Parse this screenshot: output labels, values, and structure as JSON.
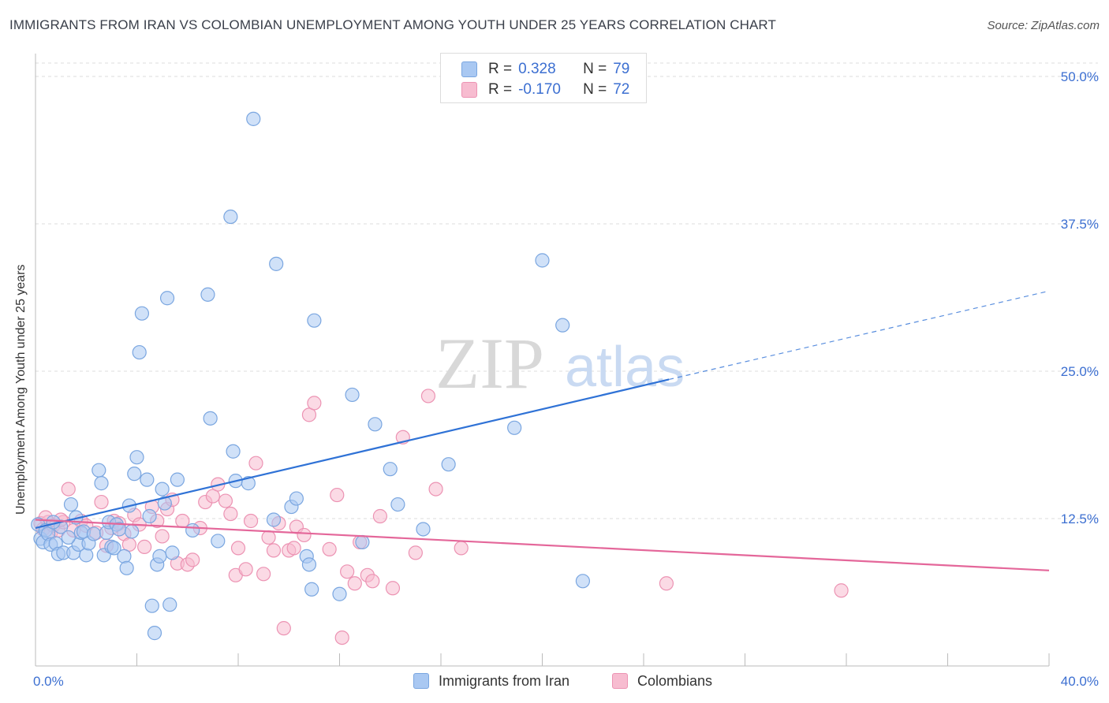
{
  "title": "IMMIGRANTS FROM IRAN VS COLOMBIAN UNEMPLOYMENT AMONG YOUTH UNDER 25 YEARS CORRELATION CHART",
  "source": "Source: ZipAtlas.com",
  "watermark": {
    "zip": "ZIP",
    "atlas": "atlas"
  },
  "legend": {
    "r_label": "R =",
    "n_label": "N =",
    "series1": {
      "r": "0.328",
      "n": "79"
    },
    "series2": {
      "r": "-0.170",
      "n": "72"
    }
  },
  "colors": {
    "iran_fill": "#a9c8f2",
    "iran_stroke": "#7aa6e0",
    "iran_line": "#2f72d6",
    "colombia_fill": "#f7bcd0",
    "colombia_stroke": "#ec93b3",
    "colombia_line": "#e4679a",
    "tick_text": "#3c6fd1",
    "grid": "#dddddd"
  },
  "chart_data": {
    "type": "scatter",
    "title": "IMMIGRANTS FROM IRAN VS COLOMBIAN UNEMPLOYMENT AMONG YOUTH UNDER 25 YEARS CORRELATION CHART",
    "xlabel": "",
    "ylabel": "Unemployment Among Youth under 25 years",
    "xlim": [
      0,
      40
    ],
    "ylim": [
      0,
      50
    ],
    "x_tick_labels": [
      "0.0%",
      "40.0%"
    ],
    "y_ticks": [
      12.5,
      25.0,
      37.5,
      50.0
    ],
    "y_tick_labels": [
      "12.5%",
      "25.0%",
      "37.5%",
      "50.0%"
    ],
    "series": [
      {
        "name": "Immigrants from Iran",
        "trend": {
          "x0": 0,
          "y0": 11.7,
          "x1": 25,
          "y1": 24.3,
          "dashed_to_x": 40,
          "dashed_to_y": 31.8
        },
        "points": [
          [
            0.1,
            12.0
          ],
          [
            0.2,
            10.8
          ],
          [
            0.3,
            10.5
          ],
          [
            0.4,
            11.5
          ],
          [
            0.5,
            11.2
          ],
          [
            0.6,
            10.3
          ],
          [
            0.8,
            10.4
          ],
          [
            0.9,
            9.5
          ],
          [
            1.0,
            11.8
          ],
          [
            1.1,
            9.6
          ],
          [
            1.4,
            13.7
          ],
          [
            1.5,
            9.6
          ],
          [
            1.6,
            12.6
          ],
          [
            1.7,
            10.3
          ],
          [
            1.8,
            11.3
          ],
          [
            1.9,
            11.4
          ],
          [
            2.0,
            9.4
          ],
          [
            2.1,
            10.4
          ],
          [
            2.3,
            11.2
          ],
          [
            2.5,
            16.6
          ],
          [
            2.6,
            15.5
          ],
          [
            2.7,
            9.4
          ],
          [
            2.8,
            11.3
          ],
          [
            2.9,
            12.2
          ],
          [
            3.0,
            10.1
          ],
          [
            3.1,
            10.0
          ],
          [
            3.2,
            12.0
          ],
          [
            3.3,
            11.6
          ],
          [
            3.5,
            9.3
          ],
          [
            3.6,
            8.3
          ],
          [
            3.7,
            13.6
          ],
          [
            3.8,
            11.4
          ],
          [
            3.9,
            16.3
          ],
          [
            4.0,
            17.7
          ],
          [
            4.1,
            26.6
          ],
          [
            4.2,
            29.9
          ],
          [
            4.4,
            15.8
          ],
          [
            4.5,
            12.7
          ],
          [
            4.6,
            5.1
          ],
          [
            4.7,
            2.8
          ],
          [
            4.8,
            8.6
          ],
          [
            4.9,
            9.3
          ],
          [
            5.0,
            15.0
          ],
          [
            5.1,
            13.8
          ],
          [
            5.2,
            31.2
          ],
          [
            5.3,
            5.2
          ],
          [
            5.4,
            9.6
          ],
          [
            5.6,
            15.8
          ],
          [
            6.2,
            11.5
          ],
          [
            6.8,
            31.5
          ],
          [
            6.9,
            21.0
          ],
          [
            7.2,
            10.6
          ],
          [
            7.7,
            38.1
          ],
          [
            7.8,
            18.2
          ],
          [
            7.9,
            15.7
          ],
          [
            8.4,
            15.5
          ],
          [
            8.6,
            46.4
          ],
          [
            9.4,
            12.4
          ],
          [
            9.5,
            34.1
          ],
          [
            10.1,
            13.5
          ],
          [
            10.3,
            14.2
          ],
          [
            10.7,
            9.3
          ],
          [
            10.8,
            8.6
          ],
          [
            10.9,
            6.5
          ],
          [
            11.0,
            29.3
          ],
          [
            12.0,
            6.1
          ],
          [
            12.5,
            23.0
          ],
          [
            12.9,
            10.5
          ],
          [
            13.4,
            20.5
          ],
          [
            14.0,
            16.7
          ],
          [
            14.3,
            13.7
          ],
          [
            15.3,
            11.6
          ],
          [
            16.3,
            17.1
          ],
          [
            18.9,
            20.2
          ],
          [
            20.0,
            34.4
          ],
          [
            20.8,
            28.9
          ],
          [
            21.6,
            7.2
          ],
          [
            0.7,
            12.2
          ],
          [
            1.3,
            10.9
          ]
        ]
      },
      {
        "name": "Colombians",
        "trend": {
          "x0": 0,
          "y0": 12.4,
          "x1": 40,
          "y1": 8.1
        },
        "points": [
          [
            0.2,
            12.1
          ],
          [
            0.3,
            11.6
          ],
          [
            0.5,
            12.2
          ],
          [
            0.6,
            11.3
          ],
          [
            0.7,
            11.9
          ],
          [
            0.9,
            11.5
          ],
          [
            1.1,
            12.2
          ],
          [
            1.3,
            15.0
          ],
          [
            1.5,
            11.5
          ],
          [
            1.8,
            12.3
          ],
          [
            2.0,
            11.9
          ],
          [
            2.4,
            11.3
          ],
          [
            2.6,
            13.9
          ],
          [
            2.8,
            10.2
          ],
          [
            3.0,
            11.7
          ],
          [
            3.1,
            12.3
          ],
          [
            3.3,
            12.1
          ],
          [
            3.5,
            11.2
          ],
          [
            3.7,
            10.3
          ],
          [
            3.9,
            12.8
          ],
          [
            4.1,
            12.0
          ],
          [
            4.3,
            10.1
          ],
          [
            4.6,
            13.5
          ],
          [
            4.8,
            12.3
          ],
          [
            5.0,
            11.0
          ],
          [
            5.2,
            13.3
          ],
          [
            5.4,
            14.1
          ],
          [
            5.6,
            8.7
          ],
          [
            5.8,
            12.3
          ],
          [
            6.0,
            8.6
          ],
          [
            6.2,
            9.0
          ],
          [
            6.5,
            11.7
          ],
          [
            6.7,
            13.9
          ],
          [
            7.0,
            14.4
          ],
          [
            7.2,
            15.4
          ],
          [
            7.5,
            14.0
          ],
          [
            7.7,
            12.9
          ],
          [
            7.9,
            7.7
          ],
          [
            8.0,
            10.0
          ],
          [
            8.3,
            8.2
          ],
          [
            8.5,
            12.3
          ],
          [
            8.7,
            17.2
          ],
          [
            9.0,
            7.8
          ],
          [
            9.2,
            10.9
          ],
          [
            9.4,
            9.8
          ],
          [
            9.6,
            12.1
          ],
          [
            9.8,
            3.2
          ],
          [
            10.0,
            9.8
          ],
          [
            10.2,
            10.0
          ],
          [
            10.3,
            11.8
          ],
          [
            10.6,
            11.1
          ],
          [
            10.8,
            21.3
          ],
          [
            11.0,
            22.3
          ],
          [
            11.6,
            9.9
          ],
          [
            11.9,
            14.5
          ],
          [
            12.1,
            2.4
          ],
          [
            12.3,
            8.0
          ],
          [
            12.6,
            7.0
          ],
          [
            12.8,
            10.5
          ],
          [
            13.1,
            7.7
          ],
          [
            13.3,
            7.2
          ],
          [
            13.6,
            12.7
          ],
          [
            14.1,
            6.6
          ],
          [
            14.5,
            19.4
          ],
          [
            15.0,
            9.6
          ],
          [
            15.5,
            22.9
          ],
          [
            15.8,
            15.0
          ],
          [
            16.8,
            10.0
          ],
          [
            24.9,
            7.0
          ],
          [
            31.8,
            6.4
          ],
          [
            0.4,
            12.6
          ],
          [
            1.0,
            12.4
          ]
        ]
      }
    ]
  },
  "bottom_legend": {
    "iran_label": "Immigrants from Iran",
    "colombia_label": "Colombians"
  }
}
